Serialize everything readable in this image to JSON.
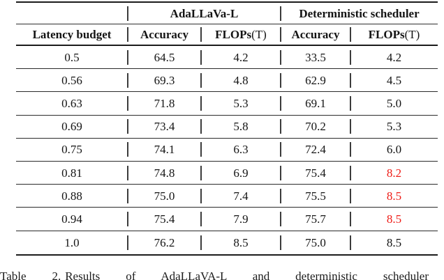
{
  "table": {
    "group_headers": [
      {
        "label": "AdaLLaVa-L"
      },
      {
        "label": "Deterministic scheduler"
      }
    ],
    "col_headers": [
      {
        "bold": "Latency budget",
        "rest": ""
      },
      {
        "bold": "Accuracy",
        "rest": ""
      },
      {
        "bold": "FLOPs",
        "rest": " (T)"
      },
      {
        "bold": "Accuracy",
        "rest": ""
      },
      {
        "bold": "FLOPs",
        "rest": " (T)"
      }
    ],
    "rows": [
      {
        "cells": [
          "0.5",
          "64.5",
          "4.2",
          "33.5",
          "4.2"
        ],
        "red": []
      },
      {
        "cells": [
          "0.56",
          "69.3",
          "4.8",
          "62.9",
          "4.5"
        ],
        "red": []
      },
      {
        "cells": [
          "0.63",
          "71.8",
          "5.3",
          "69.1",
          "5.0"
        ],
        "red": []
      },
      {
        "cells": [
          "0.69",
          "73.4",
          "5.8",
          "70.2",
          "5.3"
        ],
        "red": []
      },
      {
        "cells": [
          "0.75",
          "74.1",
          "6.3",
          "72.4",
          "6.0"
        ],
        "red": []
      },
      {
        "cells": [
          "0.81",
          "74.8",
          "6.9",
          "75.4",
          "8.2"
        ],
        "red": [
          4
        ]
      },
      {
        "cells": [
          "0.88",
          "75.0",
          "7.4",
          "75.5",
          "8.5"
        ],
        "red": [
          4
        ]
      },
      {
        "cells": [
          "0.94",
          "75.4",
          "7.9",
          "75.7",
          "8.5"
        ],
        "red": [
          4
        ]
      },
      {
        "cells": [
          "1.0",
          "76.2",
          "8.5",
          "75.0",
          "8.5"
        ],
        "red": []
      }
    ]
  },
  "caption": {
    "label": "Table 2.",
    "text": "Results of AdaLLaVA-L and deterministic scheduler"
  },
  "colors": {
    "highlight_red": "#ee1c16",
    "text": "#141414"
  }
}
